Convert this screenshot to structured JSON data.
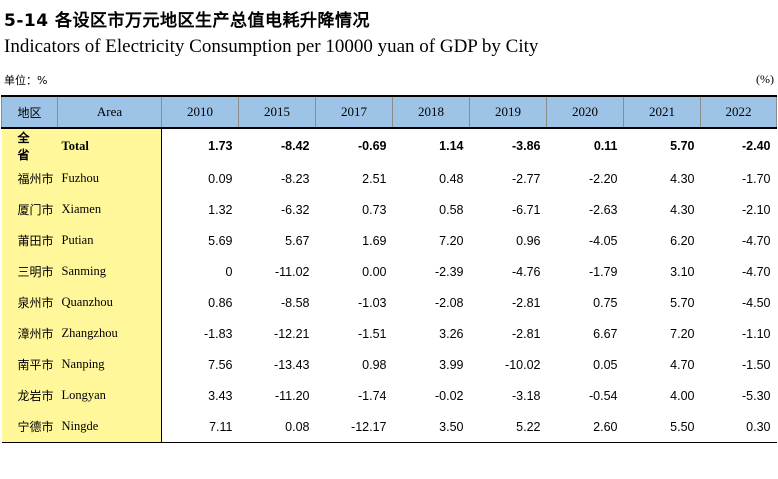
{
  "title_cn": "5-14 各设区市万元地区生产总值电耗升降情况",
  "title_en": "Indicators of Electricity Consumption per 10000 yuan of GDP by City",
  "unit_label": "单位：%",
  "unit_right": "(%)",
  "headers": {
    "region_cn": "地区",
    "area": "Area",
    "years": [
      "2010",
      "2015",
      "2017",
      "2018",
      "2019",
      "2020",
      "2021",
      "2022"
    ]
  },
  "rows": [
    {
      "cn": "全　省",
      "en": "Total",
      "values": [
        "1.73",
        "-8.42",
        "-0.69",
        "1.14",
        "-3.86",
        "0.11",
        "5.70",
        "-2.40"
      ]
    },
    {
      "cn": "福州市",
      "en": "Fuzhou",
      "values": [
        "0.09",
        "-8.23",
        "2.51",
        "0.48",
        "-2.77",
        "-2.20",
        "4.30",
        "-1.70"
      ]
    },
    {
      "cn": "厦门市",
      "en": "Xiamen",
      "values": [
        "1.32",
        "-6.32",
        "0.73",
        "0.58",
        "-6.71",
        "-2.63",
        "4.30",
        "-2.10"
      ]
    },
    {
      "cn": "莆田市",
      "en": "Putian",
      "values": [
        "5.69",
        "5.67",
        "1.69",
        "7.20",
        "0.96",
        "-4.05",
        "6.20",
        "-4.70"
      ]
    },
    {
      "cn": "三明市",
      "en": "Sanming",
      "values": [
        "0",
        "-11.02",
        "0.00",
        "-2.39",
        "-4.76",
        "-1.79",
        "3.10",
        "-4.70"
      ]
    },
    {
      "cn": "泉州市",
      "en": "Quanzhou",
      "values": [
        "0.86",
        "-8.58",
        "-1.03",
        "-2.08",
        "-2.81",
        "0.75",
        "5.70",
        "-4.50"
      ]
    },
    {
      "cn": "漳州市",
      "en": "Zhangzhou",
      "values": [
        "-1.83",
        "-12.21",
        "-1.51",
        "3.26",
        "-2.81",
        "6.67",
        "7.20",
        "-1.10"
      ]
    },
    {
      "cn": "南平市",
      "en": "Nanping",
      "values": [
        "7.56",
        "-13.43",
        "0.98",
        "3.99",
        "-10.02",
        "0.05",
        "4.70",
        "-1.50"
      ]
    },
    {
      "cn": "龙岩市",
      "en": "Longyan",
      "values": [
        "3.43",
        "-11.20",
        "-1.74",
        "-0.02",
        "-3.18",
        "-0.54",
        "4.00",
        "-5.30"
      ]
    },
    {
      "cn": "宁德市",
      "en": "Ningde",
      "values": [
        "7.11",
        "0.08",
        "-12.17",
        "3.50",
        "5.22",
        "2.60",
        "5.50",
        "0.30"
      ]
    }
  ]
}
